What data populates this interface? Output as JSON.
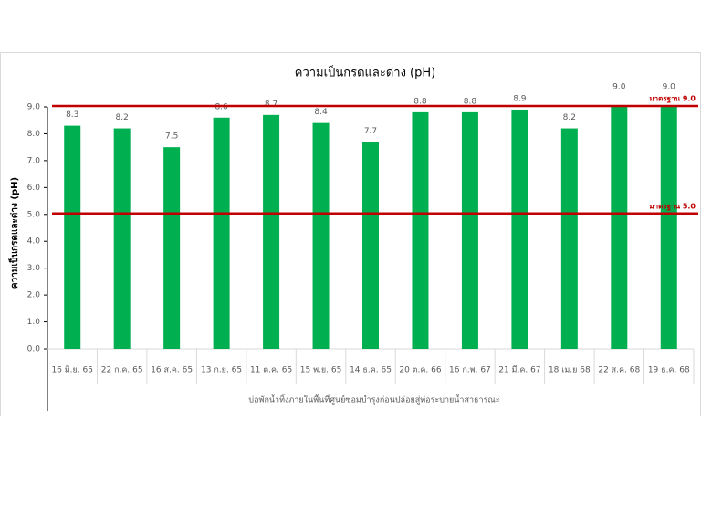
{
  "chart_data": {
    "type": "bar",
    "title": "ความเป็นกรดและด่าง (pH)",
    "y_label": "ความเป็นกรดและด่าง (pH)",
    "x_label": "บ่อพักน้ำทิ้งภายในพื้นที่ศูนย์ซ่อมบำรุงก่อนปล่อยสู่ท่อระบายน้ำสาธารณะ",
    "categories": [
      "16 มิ.ย. 65",
      "22 ก.ค. 65",
      "16 ส.ค. 65",
      "13 ก.ย. 65",
      "11 ต.ค. 65",
      "15 พ.ย. 65",
      "14 ธ.ค. 65",
      "20 ต.ค. 66",
      "16 ก.พ. 67",
      "21 มี.ค. 67",
      "18 เม.ย 68",
      "22 ส.ค. 68",
      "19 ธ.ค. 68"
    ],
    "values": [
      8.3,
      8.2,
      7.5,
      8.6,
      8.7,
      8.4,
      7.7,
      8.8,
      8.8,
      8.9,
      8.2,
      9,
      9
    ],
    "value_labels": [
      "8.3",
      "8.2",
      "7.5",
      "8.6",
      "8.7",
      "8.4",
      "7.7",
      "8.8",
      "8.8",
      "8.9",
      "8.2",
      "9.0",
      "9.0"
    ],
    "color": "#00b050",
    "ylim": [
      0,
      9
    ],
    "yticks": [
      {
        "value": 0,
        "label": "0.0"
      },
      {
        "value": 1,
        "label": "1.0"
      },
      {
        "value": 2,
        "label": "2.0"
      },
      {
        "value": 3,
        "label": "3.0"
      },
      {
        "value": 4,
        "label": "4.0"
      },
      {
        "value": 5,
        "label": "5.0"
      },
      {
        "value": 6,
        "label": "6.0"
      },
      {
        "value": 7,
        "label": "7.0"
      },
      {
        "value": 8,
        "label": "8.0"
      },
      {
        "value": 9,
        "label": "9.0"
      }
    ],
    "grid": false,
    "reference_lines": [
      {
        "value": 9,
        "label": "มาตรฐาน 9.0",
        "color": "#c00000"
      },
      {
        "value": 5,
        "label": "มาตรฐาน 5.0",
        "color": "#c00000"
      }
    ]
  }
}
